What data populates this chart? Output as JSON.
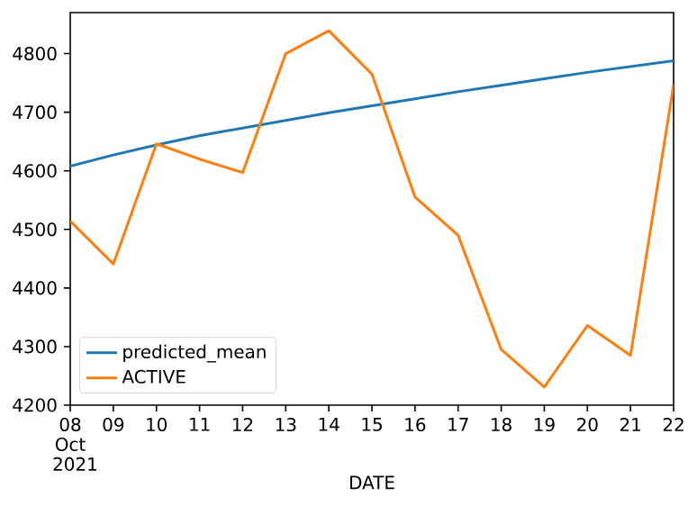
{
  "chart_data": {
    "type": "line",
    "xlabel": "DATE",
    "x": [
      "2021-10-08",
      "2021-10-09",
      "2021-10-10",
      "2021-10-11",
      "2021-10-12",
      "2021-10-13",
      "2021-10-14",
      "2021-10-15",
      "2021-10-16",
      "2021-10-17",
      "2021-10-18",
      "2021-10-19",
      "2021-10-20",
      "2021-10-21",
      "2021-10-22"
    ],
    "series": [
      {
        "name": "predicted_mean",
        "color": "#1f77b4",
        "values": [
          4608,
          4627,
          4644,
          4660,
          4673,
          4686,
          4699,
          4711,
          4723,
          4735,
          4746,
          4757,
          4768,
          4778,
          4788
        ]
      },
      {
        "name": "ACTIVE",
        "color": "#ff7f0e",
        "values": [
          4514,
          4441,
          4646,
          4620,
          4597,
          4800,
          4839,
          4765,
          4555,
          4490,
          4295,
          4231,
          4336,
          4285,
          4747
        ]
      }
    ],
    "xlim": [
      "2021-10-08",
      "2021-10-22"
    ],
    "xticks": [
      {
        "value": "2021-10-08",
        "label": "08 Oct 2021"
      },
      {
        "value": "2021-10-09",
        "label": "09"
      },
      {
        "value": "2021-10-10",
        "label": "10"
      },
      {
        "value": "2021-10-11",
        "label": "11"
      },
      {
        "value": "2021-10-12",
        "label": "12"
      },
      {
        "value": "2021-10-13",
        "label": "13"
      },
      {
        "value": "2021-10-14",
        "label": "14"
      },
      {
        "value": "2021-10-15",
        "label": "15"
      },
      {
        "value": "2021-10-16",
        "label": "16"
      },
      {
        "value": "2021-10-17",
        "label": "17"
      },
      {
        "value": "2021-10-18",
        "label": "18"
      },
      {
        "value": "2021-10-19",
        "label": "19"
      },
      {
        "value": "2021-10-20",
        "label": "20"
      },
      {
        "value": "2021-10-21",
        "label": "21"
      },
      {
        "value": "2021-10-22",
        "label": "22"
      }
    ],
    "ylim": [
      4200,
      4870
    ],
    "yticks": [
      4200,
      4300,
      4400,
      4500,
      4600,
      4700,
      4800
    ],
    "legend": "bottom left",
    "grid": false,
    "marker": "none",
    "line_style": "solid"
  }
}
